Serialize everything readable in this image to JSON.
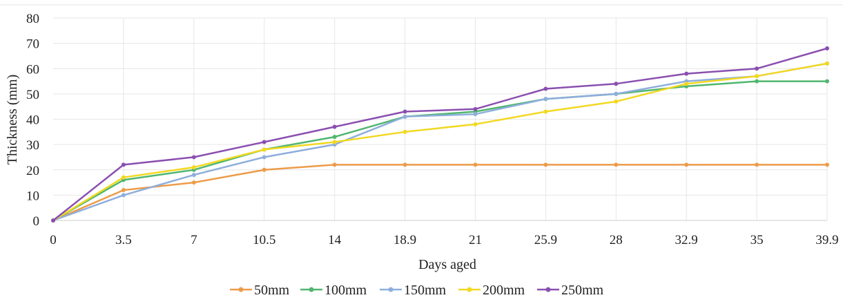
{
  "chart_data": {
    "type": "line",
    "title": "",
    "xlabel": "Days aged",
    "ylabel": "Thickness (mm)",
    "categories": [
      "0",
      "3.5",
      "7",
      "10.5",
      "14",
      "18.9",
      "21",
      "25.9",
      "28",
      "32.9",
      "35",
      "39.9"
    ],
    "ylim": [
      0,
      80
    ],
    "yticks": [
      0,
      10,
      20,
      30,
      40,
      50,
      60,
      70,
      80
    ],
    "grid": "on",
    "legend": "bottom",
    "series": [
      {
        "name": "50mm",
        "color": "#ED9B4A",
        "values": [
          0,
          12,
          15,
          20,
          22,
          22,
          22,
          22,
          22,
          22,
          22,
          22
        ]
      },
      {
        "name": "100mm",
        "color": "#4FB66E",
        "values": [
          0,
          16,
          20,
          28,
          33,
          41,
          43,
          48,
          50,
          53,
          55,
          55
        ]
      },
      {
        "name": "150mm",
        "color": "#8EAEDC",
        "values": [
          0,
          10,
          18,
          25,
          30,
          41,
          42,
          48,
          50,
          55,
          57,
          62
        ]
      },
      {
        "name": "200mm",
        "color": "#F2D822",
        "values": [
          0,
          17,
          21,
          28,
          31,
          35,
          38,
          43,
          47,
          54,
          57,
          62
        ]
      },
      {
        "name": "250mm",
        "color": "#8A4FB0",
        "values": [
          0,
          22,
          25,
          31,
          37,
          43,
          44,
          52,
          54,
          58,
          60,
          68
        ]
      }
    ]
  }
}
